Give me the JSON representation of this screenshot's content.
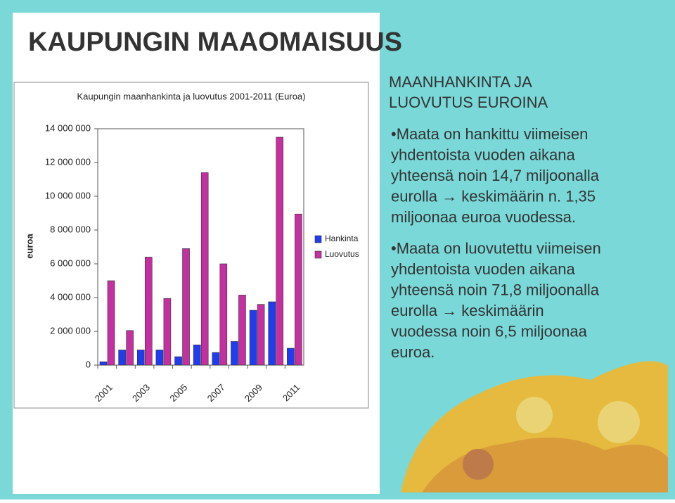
{
  "header": {
    "title": "KAUPUNGIN MAAOMAISUUS"
  },
  "chart_data": {
    "type": "bar",
    "title": "Kaupungin maanhankinta ja luovutus 2001-2011 (Euroa)",
    "y_label": "euroa",
    "categories": [
      "2001",
      null,
      "2003",
      null,
      "2005",
      null,
      "2007",
      null,
      "2009",
      null,
      "2011"
    ],
    "series": [
      {
        "name": "Hankinta",
        "color": "#1f3cf0",
        "values": [
          200000,
          900000,
          900000,
          900000,
          500000,
          1200000,
          750000,
          1400000,
          3250000,
          3750000,
          1000000
        ]
      },
      {
        "name": "Luovutus",
        "color": "#c4309f",
        "values": [
          5000000,
          2050000,
          6400000,
          3950000,
          6900000,
          11400000,
          6000000,
          4150000,
          3600000,
          13500000,
          8950000
        ]
      }
    ],
    "ylim": [
      0,
      14000000
    ],
    "yticks": [
      0,
      {
        "value": 2000000,
        "label": "2 000 000"
      },
      {
        "value": 4000000,
        "label": "4 000 000"
      },
      {
        "value": 6000000,
        "label": "6 000 000"
      },
      {
        "value": 8000000,
        "label": "8 000 000"
      },
      {
        "value": 10000000,
        "label": "10 000 000"
      },
      {
        "value": 12000000,
        "label": "12 000 000"
      },
      {
        "value": 14000000,
        "label": "14 000 000"
      }
    ],
    "legend": "right"
  },
  "side": {
    "heading": [
      "MAANHANKINTA JA",
      "LUOVUTUS EUROINA"
    ],
    "bullets": [
      [
        "•Maata on hankittu viimeisen",
        "yhdentoista vuoden aikana",
        "yhteensä noin 14,7 miljoonalla",
        "eurolla → keskimäärin n. 1,35",
        "miljoonaa euroa vuodessa."
      ],
      [
        "•Maata on luovutettu viimeisen",
        "yhdentoista vuoden aikana",
        "yhteensä noin 71,8 miljoonalla",
        "eurolla → keskimäärin",
        "vuodessa noin 6,5 miljoonaa",
        "euroa."
      ]
    ]
  }
}
